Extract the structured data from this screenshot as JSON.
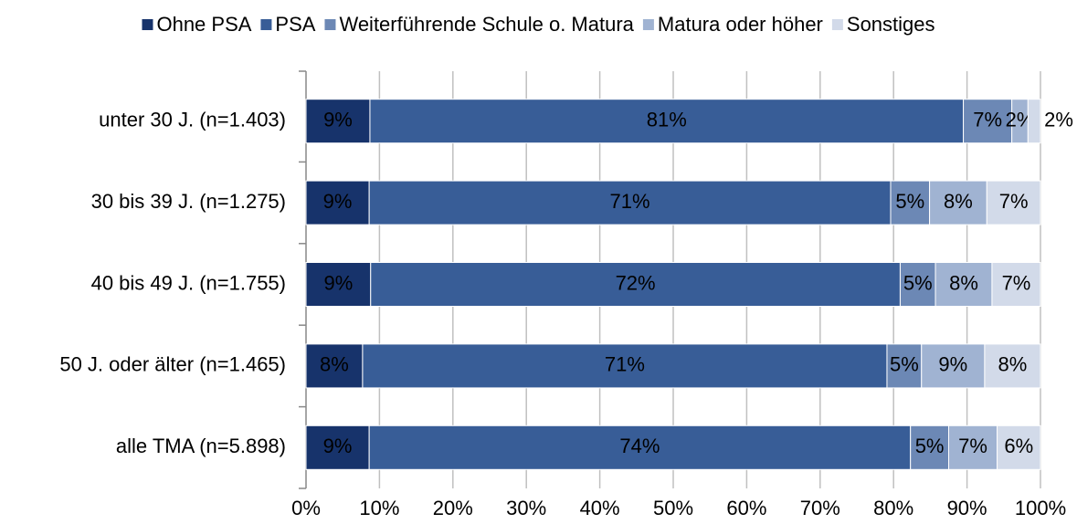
{
  "chart_data": {
    "type": "stacked_barh",
    "categories": [
      "unter 30 J. (n=1.403)",
      "30 bis 39 J. (n=1.275)",
      "40 bis 49 J. (n=1.755)",
      "50 J. oder älter (n=1.465)",
      "alle TMA (n=5.898)"
    ],
    "series": [
      {
        "name": "Ohne PSA",
        "color": "#17336b",
        "label_color": "#ffffff",
        "values": [
          8.7,
          8.6,
          8.8,
          7.7,
          8.6
        ],
        "value_labels": [
          "9%",
          "9%",
          "9%",
          "8%",
          "9%"
        ]
      },
      {
        "name": "PSA",
        "color": "#385d97",
        "label_color": "#ffffff",
        "values": [
          80.8,
          71.0,
          72.1,
          71.4,
          73.7
        ],
        "value_labels": [
          "81%",
          "71%",
          "72%",
          "71%",
          "74%"
        ]
      },
      {
        "name": "Weiterführende Schule o. Matura",
        "color": "#6c88b5",
        "label_color": "#ffffff",
        "values": [
          6.6,
          5.3,
          4.8,
          4.7,
          5.2
        ],
        "value_labels": [
          "7%",
          "5%",
          "5%",
          "5%",
          "5%"
        ]
      },
      {
        "name": "Matura oder höher",
        "color": "#a0b3d2",
        "label_color": "#000000",
        "values": [
          2.2,
          7.8,
          7.7,
          8.6,
          6.6
        ],
        "value_labels": [
          "2%",
          "8%",
          "8%",
          "9%",
          "7%"
        ]
      },
      {
        "name": "Sonstiges",
        "color": "#d2dae9",
        "label_color": "#000000",
        "values": [
          1.7,
          7.3,
          6.6,
          7.6,
          5.9
        ],
        "value_labels": [
          "2%",
          "7%",
          "7%",
          "8%",
          "6%"
        ]
      }
    ],
    "xlim": [
      0,
      100
    ],
    "xticks": [
      {
        "value": 0,
        "label": "0%"
      },
      {
        "value": 10,
        "label": "10%"
      },
      {
        "value": 20,
        "label": "20%"
      },
      {
        "value": 30,
        "label": "30%"
      },
      {
        "value": 40,
        "label": "40%"
      },
      {
        "value": 50,
        "label": "50%"
      },
      {
        "value": 60,
        "label": "60%"
      },
      {
        "value": 70,
        "label": "70%"
      },
      {
        "value": 80,
        "label": "80%"
      },
      {
        "value": 90,
        "label": "90%"
      },
      {
        "value": 100,
        "label": "100%"
      }
    ],
    "grid": true,
    "legend": "top"
  }
}
